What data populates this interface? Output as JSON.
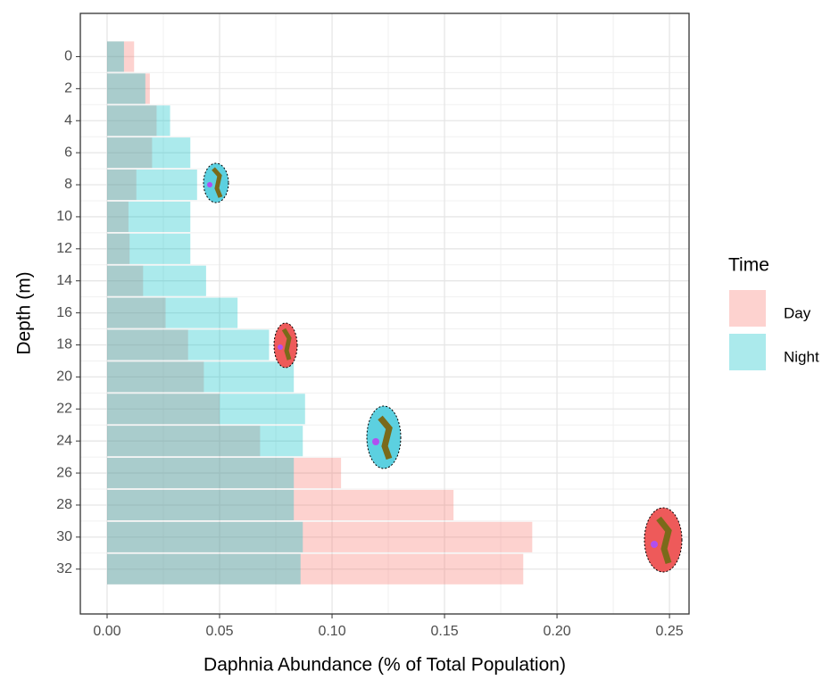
{
  "chart_data": {
    "type": "bar",
    "orientation": "horizontal",
    "x_label": "Daphnia Abundance (% of Total Population)",
    "y_label": "Depth (m)",
    "y": [
      0,
      2,
      4,
      6,
      8,
      10,
      12,
      14,
      16,
      18,
      20,
      22,
      24,
      26,
      28,
      30,
      32
    ],
    "y_reversed": true,
    "ylim": [
      -2.7,
      34.8
    ],
    "yticks": [
      0,
      2,
      4,
      6,
      8,
      10,
      12,
      14,
      16,
      18,
      20,
      22,
      24,
      26,
      28,
      30,
      32
    ],
    "xlim": [
      -0.0119,
      0.2587
    ],
    "xticks": [
      {
        "value": 0,
        "label": "0.00"
      },
      {
        "value": 0.05,
        "label": "0.05"
      },
      {
        "value": 0.1,
        "label": "0.10"
      },
      {
        "value": 0.15,
        "label": "0.15"
      },
      {
        "value": 0.2,
        "label": "0.20"
      },
      {
        "value": 0.25,
        "label": "0.25"
      }
    ],
    "grid": true,
    "bar_opacity": 0.33,
    "legend_title": "Time",
    "legend_position": "right",
    "series": [
      {
        "name": "Day",
        "color": "#F8766D",
        "values": [
          0.012,
          0.019,
          0.022,
          0.02,
          0.013,
          0.0095,
          0.01,
          0.016,
          0.026,
          0.036,
          0.043,
          0.05,
          0.068,
          0.104,
          0.154,
          0.189,
          0.185
        ]
      },
      {
        "name": "Night",
        "color": "#00BFC4",
        "values": [
          0.0075,
          0.017,
          0.028,
          0.037,
          0.04,
          0.037,
          0.037,
          0.044,
          0.058,
          0.072,
          0.083,
          0.088,
          0.087,
          0.083,
          0.083,
          0.087,
          0.086
        ]
      }
    ]
  }
}
